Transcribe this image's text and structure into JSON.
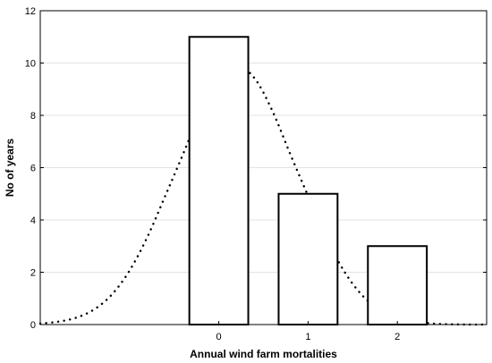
{
  "chart_data": {
    "type": "bar",
    "title": "",
    "xlabel": "Annual wind farm mortalities",
    "ylabel": "No of years",
    "categories": [
      "0",
      "1",
      "2"
    ],
    "series": [
      {
        "values": [
          11,
          5,
          3
        ]
      }
    ],
    "overlay": {
      "type": "line",
      "style": "dotted",
      "x": [
        -2.0,
        -1.8,
        -1.6,
        -1.4,
        -1.2,
        -1.0,
        -0.8,
        -0.6,
        -0.4,
        -0.2,
        0.0,
        0.2,
        0.4,
        0.6,
        0.8,
        1.0,
        1.2,
        1.4,
        1.6,
        1.8,
        2.0,
        2.2,
        2.4,
        2.6,
        2.8,
        3.0
      ],
      "y": [
        0.04,
        0.11,
        0.26,
        0.57,
        1.14,
        2.06,
        3.35,
        4.92,
        6.52,
        8.17,
        9.42,
        9.89,
        9.42,
        8.17,
        6.52,
        4.92,
        3.35,
        2.06,
        1.14,
        0.57,
        0.26,
        0.11,
        0.04,
        0.01,
        0.0,
        0.0
      ]
    },
    "x_range": [
      -2,
      3
    ],
    "ylim": [
      0,
      12
    ],
    "y_ticks": [
      0,
      2,
      4,
      6,
      8,
      10,
      12
    ],
    "grid": true,
    "legend": "none"
  }
}
